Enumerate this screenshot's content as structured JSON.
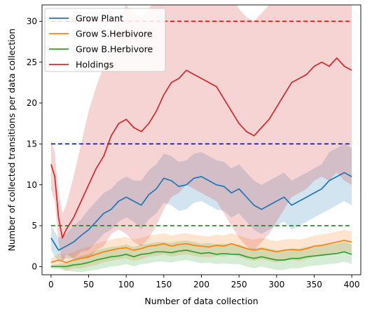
{
  "chart_data": {
    "type": "line",
    "xlabel": "Number of data collection",
    "ylabel": "Number of collected transitions per data collection",
    "xlim": [
      -12,
      412
    ],
    "ylim": [
      -1,
      32
    ],
    "xticks": [
      0,
      50,
      100,
      150,
      200,
      250,
      300,
      350,
      400
    ],
    "yticks": [
      0,
      5,
      10,
      15,
      20,
      25,
      30
    ],
    "grid": false,
    "legend_position": "top-left",
    "series": [
      {
        "name": "Grow Plant",
        "color": "#1f77b4",
        "x": [
          0,
          10,
          20,
          30,
          40,
          50,
          60,
          70,
          80,
          90,
          100,
          110,
          120,
          130,
          140,
          150,
          160,
          170,
          180,
          190,
          200,
          210,
          220,
          230,
          240,
          250,
          260,
          270,
          280,
          290,
          300,
          310,
          320,
          330,
          340,
          350,
          360,
          370,
          380,
          390,
          400
        ],
        "y": [
          3.5,
          2.0,
          2.5,
          3.0,
          3.8,
          4.5,
          5.5,
          6.5,
          7.0,
          8.0,
          8.5,
          8.0,
          7.5,
          8.8,
          9.5,
          10.8,
          10.5,
          9.8,
          10.0,
          10.8,
          11.0,
          10.5,
          10.0,
          9.8,
          9.0,
          9.5,
          8.5,
          7.5,
          7.0,
          7.5,
          8.0,
          8.5,
          7.5,
          8.0,
          8.5,
          9.0,
          9.5,
          10.5,
          11.0,
          11.5,
          11.0
        ],
        "band": [
          1.5,
          1.5,
          1.5,
          2.0,
          2.0,
          2.5,
          2.5,
          2.5,
          2.5,
          2.5,
          2.5,
          2.5,
          3.0,
          3.0,
          3.0,
          3.0,
          3.0,
          3.0,
          3.0,
          3.0,
          3.0,
          3.0,
          3.0,
          3.0,
          3.0,
          3.0,
          3.0,
          3.0,
          3.0,
          3.0,
          3.0,
          3.0,
          3.0,
          3.0,
          3.0,
          3.0,
          3.0,
          3.5,
          3.5,
          3.5,
          3.5
        ]
      },
      {
        "name": "Grow S.Herbivore",
        "color": "#ff7f0e",
        "x": [
          0,
          10,
          20,
          30,
          40,
          50,
          60,
          70,
          80,
          90,
          100,
          110,
          120,
          130,
          140,
          150,
          160,
          170,
          180,
          190,
          200,
          210,
          220,
          230,
          240,
          250,
          260,
          270,
          280,
          290,
          300,
          310,
          320,
          330,
          340,
          350,
          360,
          370,
          380,
          390,
          400
        ],
        "y": [
          0.5,
          0.8,
          0.5,
          0.8,
          1.0,
          1.2,
          1.5,
          1.8,
          2.0,
          2.2,
          2.3,
          2.0,
          2.2,
          2.5,
          2.6,
          2.8,
          2.5,
          2.7,
          2.8,
          2.6,
          2.5,
          2.4,
          2.6,
          2.5,
          2.8,
          2.5,
          2.2,
          2.0,
          2.2,
          2.0,
          1.8,
          2.0,
          2.1,
          2.0,
          2.2,
          2.5,
          2.6,
          2.8,
          3.0,
          3.2,
          3.0
        ],
        "band": [
          0.5,
          0.8,
          1.0,
          1.0,
          1.2,
          1.2,
          1.3,
          1.3,
          1.3,
          1.3,
          1.3,
          1.3,
          1.3,
          1.3,
          1.3,
          1.3,
          1.3,
          1.3,
          1.3,
          1.3,
          1.3,
          1.3,
          1.3,
          1.3,
          1.3,
          1.3,
          1.3,
          1.3,
          1.3,
          1.3,
          1.3,
          1.3,
          1.3,
          1.3,
          1.3,
          1.3,
          1.3,
          1.3,
          1.3,
          1.3,
          1.3
        ]
      },
      {
        "name": "Grow B.Herbivore",
        "color": "#2ca02c",
        "x": [
          0,
          10,
          20,
          30,
          40,
          50,
          60,
          70,
          80,
          90,
          100,
          110,
          120,
          130,
          140,
          150,
          160,
          170,
          180,
          190,
          200,
          210,
          220,
          230,
          240,
          250,
          260,
          270,
          280,
          290,
          300,
          310,
          320,
          330,
          340,
          350,
          360,
          370,
          380,
          390,
          400
        ],
        "y": [
          0.0,
          0.0,
          0.0,
          0.2,
          0.3,
          0.5,
          0.8,
          1.0,
          1.2,
          1.3,
          1.5,
          1.2,
          1.5,
          1.6,
          1.8,
          1.8,
          1.7,
          1.9,
          2.0,
          1.8,
          1.6,
          1.7,
          1.5,
          1.6,
          1.5,
          1.5,
          1.2,
          1.0,
          1.2,
          1.0,
          0.8,
          0.8,
          1.0,
          1.0,
          1.2,
          1.3,
          1.4,
          1.5,
          1.6,
          1.8,
          1.5
        ],
        "band": [
          0.2,
          0.3,
          0.5,
          0.8,
          1.0,
          1.0,
          1.2,
          1.2,
          1.2,
          1.2,
          1.2,
          1.2,
          1.2,
          1.2,
          1.2,
          1.2,
          1.2,
          1.2,
          1.2,
          1.2,
          1.2,
          1.2,
          1.2,
          1.2,
          1.2,
          1.2,
          1.2,
          1.2,
          1.2,
          1.2,
          1.2,
          1.2,
          1.2,
          1.2,
          1.2,
          1.2,
          1.2,
          1.2,
          1.2,
          1.2,
          1.2
        ]
      },
      {
        "name": "Holdings",
        "color": "#d62728",
        "x": [
          0,
          5,
          10,
          15,
          20,
          30,
          40,
          50,
          60,
          70,
          80,
          90,
          100,
          110,
          120,
          130,
          140,
          150,
          160,
          170,
          180,
          190,
          200,
          210,
          220,
          230,
          240,
          250,
          260,
          270,
          280,
          290,
          300,
          310,
          320,
          330,
          340,
          350,
          360,
          370,
          380,
          390,
          400
        ],
        "y": [
          12.5,
          11.0,
          6.0,
          3.5,
          4.5,
          6.0,
          8.0,
          10.0,
          12.0,
          13.5,
          16.0,
          17.5,
          18.0,
          17.0,
          16.5,
          17.5,
          19.0,
          21.0,
          22.5,
          23.0,
          24.0,
          23.5,
          23.0,
          22.5,
          22.0,
          20.5,
          19.0,
          17.5,
          16.5,
          16.0,
          17.0,
          18.0,
          19.5,
          21.0,
          22.5,
          23.0,
          23.5,
          24.5,
          25.0,
          24.5,
          25.5,
          24.5,
          24.0
        ],
        "band": [
          3.0,
          3.0,
          3.0,
          3.0,
          3.0,
          5.0,
          7.0,
          9.0,
          10.0,
          11.0,
          12.0,
          13.0,
          14.0,
          14.0,
          14.0,
          14.0,
          14.0,
          14.0,
          14.0,
          14.0,
          14.0,
          14.0,
          14.0,
          14.0,
          14.0,
          14.0,
          14.0,
          14.0,
          14.0,
          14.0,
          14.0,
          14.0,
          14.0,
          14.0,
          14.0,
          14.0,
          14.0,
          14.0,
          14.0,
          14.0,
          14.0,
          14.0,
          14.0
        ]
      }
    ],
    "reference_lines": [
      {
        "y": 30,
        "color": "#ff0000",
        "style": "dashed"
      },
      {
        "y": 15,
        "color": "#0000ff",
        "style": "dashed"
      },
      {
        "y": 5,
        "color": "#008000",
        "style": "dashed"
      }
    ]
  }
}
